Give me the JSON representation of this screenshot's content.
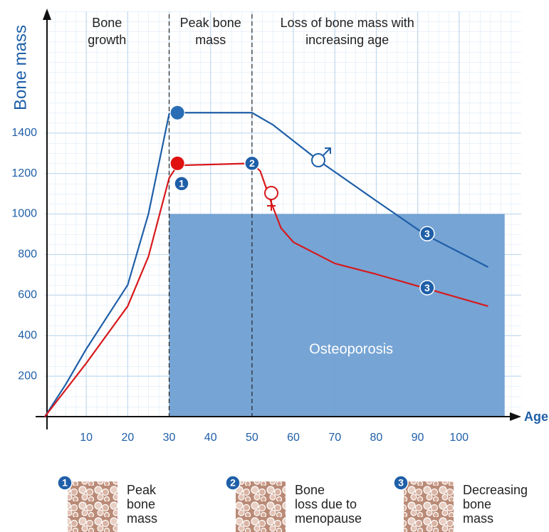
{
  "chart_data": {
    "type": "line",
    "ylabel": "Bone mass",
    "xlabel": "Age",
    "xlim": [
      0,
      115
    ],
    "ylim": [
      0,
      2000
    ],
    "xticks": [
      10,
      20,
      30,
      40,
      50,
      60,
      70,
      80,
      90,
      100
    ],
    "yticks": [
      200,
      400,
      600,
      800,
      1000,
      1200,
      1400
    ],
    "grid": true,
    "series": [
      {
        "color": "#1f5fa8",
        "x": [
          0,
          5,
          10,
          20,
          25,
          30,
          32,
          50,
          55,
          66,
          80,
          92,
          107
        ],
        "values": [
          0,
          158,
          334,
          650,
          1000,
          1494,
          1500,
          1500,
          1441,
          1265,
          1065,
          896,
          738
        ]
      },
      {
        "color": "#d7191c",
        "x": [
          0,
          10,
          20,
          25,
          30,
          32,
          50,
          52,
          55,
          57,
          60,
          70,
          80,
          92,
          107
        ],
        "values": [
          0,
          264,
          545,
          790,
          1177,
          1240,
          1250,
          1212,
          1037,
          931,
          861,
          756,
          703,
          633,
          545
        ]
      }
    ],
    "markers": [
      {
        "x": 32,
        "y": 1500,
        "color": "#2a6db5"
      },
      {
        "x": 32,
        "y": 1250,
        "color": "#e01010"
      }
    ],
    "phase_dividers": [
      30,
      50
    ],
    "phases": [
      {
        "x": 15,
        "lines": [
          "Bone",
          "growth"
        ]
      },
      {
        "x": 40,
        "lines": [
          "Peak bone",
          "mass"
        ]
      },
      {
        "x": 73,
        "lines": [
          "Loss of bone mass with",
          "increasing age"
        ]
      }
    ],
    "region": {
      "label": "Osteoporosis",
      "x0": 30,
      "x1": 111,
      "y1": 1000,
      "color": "#6f9fd2"
    },
    "badges": [
      {
        "text": "1",
        "x": 33,
        "y": 1150
      },
      {
        "text": "2",
        "x": 50,
        "y": 1250
      },
      {
        "text": "3",
        "x": 92.3,
        "y": 903
      },
      {
        "text": "3",
        "x": 92.3,
        "y": 636
      }
    ]
  },
  "legend_items": [
    {
      "number": "1",
      "lines": [
        "Peak",
        "bone",
        "mass"
      ]
    },
    {
      "number": "2",
      "lines": [
        "Bone",
        "loss due to",
        "menopause"
      ]
    },
    {
      "number": "3",
      "lines": [
        "Decreasing",
        "bone",
        "mass"
      ]
    }
  ]
}
